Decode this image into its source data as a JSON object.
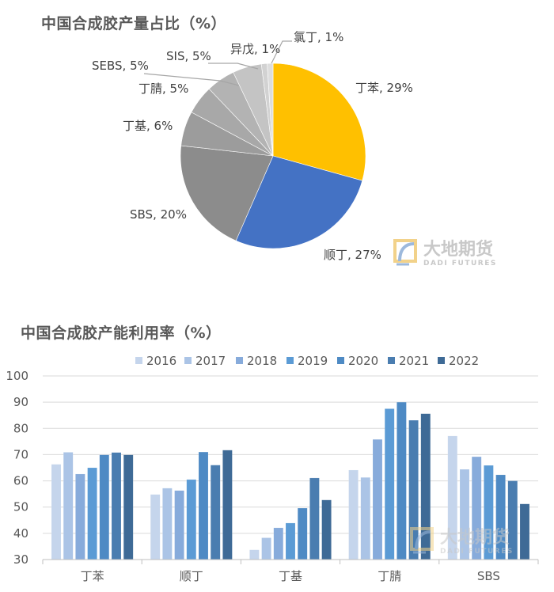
{
  "chart_data": [
    {
      "type": "pie",
      "title": "中国合成胶产量占比（%）",
      "start_angle_deg": 0,
      "direction": "clockwise",
      "slices": [
        {
          "label": "丁苯",
          "value": 29,
          "text": "丁苯, 29%",
          "color": "#FFC000"
        },
        {
          "label": "顺丁",
          "value": 27,
          "text": "顺丁, 27%",
          "color": "#4472C4"
        },
        {
          "label": "SBS",
          "value": 20,
          "text": "SBS, 20%",
          "color": "#8C8C8C"
        },
        {
          "label": "丁基",
          "value": 6,
          "text": "丁基, 6%",
          "color": "#9C9C9C"
        },
        {
          "label": "丁腈",
          "value": 5,
          "text": "丁腈, 5%",
          "color": "#A8A8A8"
        },
        {
          "label": "SEBS",
          "value": 5,
          "text": "SEBS, 5%",
          "color": "#B3B3B3"
        },
        {
          "label": "SIS",
          "value": 5,
          "text": "SIS, 5%",
          "color": "#C4C4C4"
        },
        {
          "label": "异戊",
          "value": 1,
          "text": "异戊, 1%",
          "color": "#D2D2D2"
        },
        {
          "label": "氯丁",
          "value": 1,
          "text": "氯丁, 1%",
          "color": "#DDDDDD"
        }
      ]
    },
    {
      "type": "bar",
      "title": "中国合成胶产能利用率（%）",
      "categories": [
        "丁苯",
        "顺丁",
        "丁基",
        "丁腈",
        "SBS"
      ],
      "ylim": [
        30,
        100
      ],
      "yticks": [
        30,
        40,
        50,
        60,
        70,
        80,
        90,
        100
      ],
      "grid": true,
      "legend_position": "top",
      "series": [
        {
          "name": "2016",
          "color": "#C5D5EC",
          "values": [
            66.3,
            54.8,
            33.7,
            64.1,
            77.1
          ]
        },
        {
          "name": "2017",
          "color": "#ABC4E6",
          "values": [
            70.9,
            57.2,
            38.3,
            61.3,
            64.4
          ]
        },
        {
          "name": "2018",
          "color": "#87ABDB",
          "values": [
            62.6,
            56.3,
            42.1,
            75.8,
            69.2
          ]
        },
        {
          "name": "2019",
          "color": "#5B9BD5",
          "values": [
            65.0,
            60.5,
            43.9,
            87.5,
            65.9
          ]
        },
        {
          "name": "2020",
          "color": "#4E8AC4",
          "values": [
            69.9,
            71.0,
            49.6,
            90.0,
            62.3
          ]
        },
        {
          "name": "2021",
          "color": "#4A7DB0",
          "values": [
            70.8,
            66.0,
            61.1,
            83.1,
            60.0
          ]
        },
        {
          "name": "2022",
          "color": "#3E6A96",
          "values": [
            69.9,
            71.7,
            52.7,
            85.6,
            51.2
          ]
        }
      ]
    }
  ],
  "watermark": {
    "cn": "大地期货",
    "en": "DADI FUTURES"
  }
}
